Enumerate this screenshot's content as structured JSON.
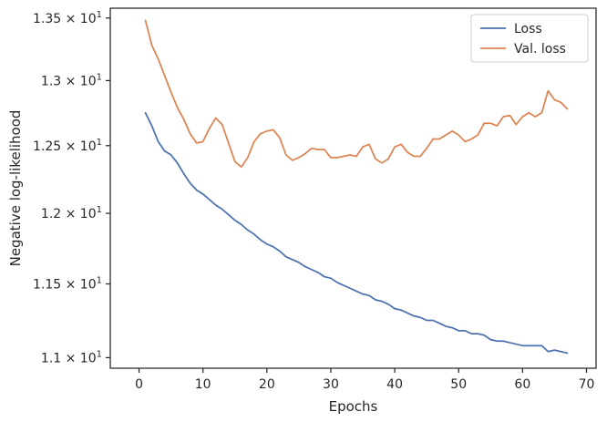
{
  "chart_data": {
    "type": "line",
    "title": "",
    "xlabel": "Epochs",
    "ylabel": "Negative log-likelihood",
    "yscale": "log",
    "xlim": [
      -4.5,
      71.5
    ],
    "ylim": [
      10.93,
      13.58
    ],
    "x_ticks": [
      0,
      10,
      20,
      30,
      40,
      50,
      60,
      70
    ],
    "y_ticks": [
      {
        "value": 11.0,
        "mantissa": "1.1",
        "exp": "1"
      },
      {
        "value": 11.5,
        "mantissa": "1.15",
        "exp": "1"
      },
      {
        "value": 12.0,
        "mantissa": "1.2",
        "exp": "1"
      },
      {
        "value": 12.5,
        "mantissa": "1.25",
        "exp": "1"
      },
      {
        "value": 13.0,
        "mantissa": "1.3",
        "exp": "1"
      },
      {
        "value": 13.5,
        "mantissa": "1.35",
        "exp": "1"
      }
    ],
    "grid": false,
    "legend_position": "top-right",
    "series": [
      {
        "name": "Loss",
        "color": "#4c72b0",
        "x": [
          1,
          2,
          3,
          4,
          5,
          6,
          7,
          8,
          9,
          10,
          11,
          12,
          13,
          14,
          15,
          16,
          17,
          18,
          19,
          20,
          21,
          22,
          23,
          24,
          25,
          26,
          27,
          28,
          29,
          30,
          31,
          32,
          33,
          34,
          35,
          36,
          37,
          38,
          39,
          40,
          41,
          42,
          43,
          44,
          45,
          46,
          47,
          48,
          49,
          50,
          51,
          52,
          53,
          54,
          55,
          56,
          57,
          58,
          59,
          60,
          61,
          62,
          63,
          64,
          65,
          66,
          67
        ],
        "values": [
          12.75,
          12.65,
          12.53,
          12.46,
          12.43,
          12.37,
          12.29,
          12.22,
          12.17,
          12.14,
          12.1,
          12.06,
          12.03,
          11.99,
          11.95,
          11.92,
          11.88,
          11.85,
          11.81,
          11.78,
          11.76,
          11.73,
          11.69,
          11.67,
          11.65,
          11.62,
          11.6,
          11.58,
          11.55,
          11.54,
          11.51,
          11.49,
          11.47,
          11.45,
          11.43,
          11.42,
          11.39,
          11.38,
          11.36,
          11.33,
          11.32,
          11.3,
          11.28,
          11.27,
          11.25,
          11.25,
          11.23,
          11.21,
          11.2,
          11.18,
          11.18,
          11.16,
          11.16,
          11.15,
          11.12,
          11.11,
          11.11,
          11.1,
          11.09,
          11.08,
          11.08,
          11.08,
          11.08,
          11.04,
          11.05,
          11.04,
          11.03
        ]
      },
      {
        "name": "Val. loss",
        "color": "#dd8452",
        "x": [
          1,
          2,
          3,
          4,
          5,
          6,
          7,
          8,
          9,
          10,
          11,
          12,
          13,
          14,
          15,
          16,
          17,
          18,
          19,
          20,
          21,
          22,
          23,
          24,
          25,
          26,
          27,
          28,
          29,
          30,
          31,
          32,
          33,
          34,
          35,
          36,
          37,
          38,
          39,
          40,
          41,
          42,
          43,
          44,
          45,
          46,
          47,
          48,
          49,
          50,
          51,
          52,
          53,
          54,
          55,
          56,
          57,
          58,
          59,
          60,
          61,
          62,
          63,
          64,
          65,
          66,
          67
        ],
        "values": [
          13.48,
          13.28,
          13.17,
          13.04,
          12.91,
          12.79,
          12.7,
          12.59,
          12.52,
          12.53,
          12.63,
          12.71,
          12.66,
          12.52,
          12.38,
          12.34,
          12.41,
          12.53,
          12.59,
          12.61,
          12.62,
          12.56,
          12.43,
          12.39,
          12.41,
          12.44,
          12.48,
          12.47,
          12.47,
          12.41,
          12.41,
          12.42,
          12.43,
          12.42,
          12.49,
          12.51,
          12.4,
          12.37,
          12.4,
          12.49,
          12.51,
          12.45,
          12.42,
          12.42,
          12.48,
          12.55,
          12.55,
          12.58,
          12.61,
          12.58,
          12.53,
          12.55,
          12.58,
          12.67,
          12.67,
          12.65,
          12.72,
          12.73,
          12.66,
          12.72,
          12.75,
          12.72,
          12.75,
          12.92,
          12.85,
          12.83,
          12.78
        ]
      }
    ]
  }
}
